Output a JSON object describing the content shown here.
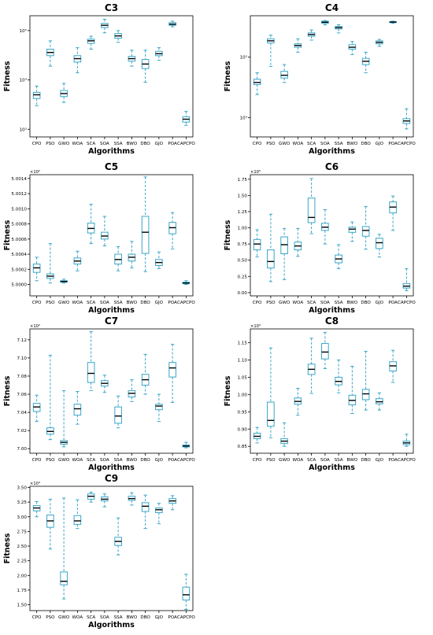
{
  "style": {
    "box_color": "#3aa6c8",
    "median_color": "#000000",
    "axis_color": "#000000"
  },
  "chart_data": [
    {
      "type": "box",
      "title": "C3",
      "xlabel": "Algorithms",
      "ylabel": "Fitness",
      "yscale": "log",
      "ylim": [
        700,
        200000
      ],
      "offset_label": "",
      "categories": [
        "CPO",
        "PSO",
        "GWO",
        "WOA",
        "SCA",
        "SOA",
        "SSA",
        "BWO",
        "DBO",
        "GJO",
        "POA",
        "CAPCPO"
      ],
      "yticks": [
        1000,
        10000,
        100000
      ],
      "yticklabels": [
        "10³",
        "10⁴",
        "10⁵"
      ],
      "boxes": [
        {
          "whislo": 3000,
          "q1": 4200,
          "med": 5000,
          "q3": 5600,
          "whishi": 7500
        },
        {
          "whislo": 19000,
          "q1": 31000,
          "med": 36000,
          "q3": 42000,
          "whishi": 62000
        },
        {
          "whislo": 3500,
          "q1": 4600,
          "med": 5300,
          "q3": 6100,
          "whishi": 8500
        },
        {
          "whislo": 14000,
          "q1": 23000,
          "med": 27000,
          "q3": 31000,
          "whishi": 45000
        },
        {
          "whislo": 42000,
          "q1": 55000,
          "med": 62000,
          "q3": 67000,
          "whishi": 77000
        },
        {
          "whislo": 90000,
          "q1": 115000,
          "med": 128000,
          "q3": 140000,
          "whishi": 170000
        },
        {
          "whislo": 58000,
          "q1": 70000,
          "med": 78000,
          "q3": 87000,
          "whishi": 100000
        },
        {
          "whislo": 19000,
          "q1": 24000,
          "med": 27000,
          "q3": 30000,
          "whishi": 40000
        },
        {
          "whislo": 9000,
          "q1": 17000,
          "med": 21000,
          "q3": 26000,
          "whishi": 40000
        },
        {
          "whislo": 25000,
          "q1": 31000,
          "med": 34000,
          "q3": 38000,
          "whishi": 45000
        },
        {
          "whislo": 120000,
          "q1": 128000,
          "med": 135000,
          "q3": 145000,
          "whishi": 155000
        },
        {
          "whislo": 1200,
          "q1": 1400,
          "med": 1600,
          "q3": 1800,
          "whishi": 2300
        }
      ]
    },
    {
      "type": "box",
      "title": "C4",
      "xlabel": "Algorithms",
      "ylabel": "Fitness",
      "yscale": "log",
      "ylim": [
        4800,
        480000
      ],
      "offset_label": "",
      "categories": [
        "CPO",
        "PSO",
        "GWO",
        "WOA",
        "SCA",
        "SOA",
        "SSA",
        "BWO",
        "DBO",
        "GJO",
        "POA",
        "CAPCPO"
      ],
      "yticks": [
        10000,
        100000
      ],
      "yticklabels": [
        "10⁴",
        "10⁵"
      ],
      "boxes": [
        {
          "whislo": 24000,
          "q1": 35000,
          "med": 38000,
          "q3": 43000,
          "whishi": 55000
        },
        {
          "whislo": 70000,
          "q1": 170000,
          "med": 185000,
          "q3": 200000,
          "whishi": 230000
        },
        {
          "whislo": 38000,
          "q1": 45000,
          "med": 50000,
          "q3": 58000,
          "whishi": 75000
        },
        {
          "whislo": 120000,
          "q1": 145000,
          "med": 155000,
          "q3": 165000,
          "whishi": 200000
        },
        {
          "whislo": 190000,
          "q1": 220000,
          "med": 235000,
          "q3": 250000,
          "whishi": 280000
        },
        {
          "whislo": 340000,
          "q1": 360000,
          "med": 375000,
          "q3": 390000,
          "whishi": 400000
        },
        {
          "whislo": 250000,
          "q1": 290000,
          "med": 305000,
          "q3": 320000,
          "whishi": 340000
        },
        {
          "whislo": 110000,
          "q1": 135000,
          "med": 145000,
          "q3": 160000,
          "whishi": 180000
        },
        {
          "whislo": 55000,
          "q1": 75000,
          "med": 85000,
          "q3": 95000,
          "whishi": 120000
        },
        {
          "whislo": 150000,
          "q1": 165000,
          "med": 175000,
          "q3": 185000,
          "whishi": 195000
        },
        {
          "whislo": 360000,
          "q1": 370000,
          "med": 378000,
          "q3": 383000,
          "whishi": 390000
        },
        {
          "whislo": 6500,
          "q1": 8000,
          "med": 8800,
          "q3": 9600,
          "whishi": 14000
        }
      ]
    },
    {
      "type": "box",
      "title": "C5",
      "xlabel": "Algorithms",
      "ylabel": "Fitness",
      "yscale": "linear",
      "ylim": [
        4.99985,
        5.00145
      ],
      "offset_label": "×10²",
      "categories": [
        "CPO",
        "PSO",
        "GWO",
        "WOA",
        "SCA",
        "SOA",
        "SSA",
        "BWO",
        "DBO",
        "GJO",
        "POA",
        "CAPCPO"
      ],
      "yticks": [
        5.0,
        5.0002,
        5.0004,
        5.0006,
        5.0008,
        5.001,
        5.0012,
        5.0014
      ],
      "yticklabels": [
        "5.0000",
        "5.0002",
        "5.0004",
        "5.0006",
        "5.0008",
        "5.0010",
        "5.0012",
        "5.0014"
      ],
      "boxes": [
        {
          "whislo": 5.00005,
          "q1": 5.00016,
          "med": 5.00022,
          "q3": 5.00027,
          "whishi": 5.00036
        },
        {
          "whislo": 5.00002,
          "q1": 5.00008,
          "med": 5.00011,
          "q3": 5.00014,
          "whishi": 5.00054
        },
        {
          "whislo": 5.00002,
          "q1": 5.00003,
          "med": 5.00004,
          "q3": 5.00005,
          "whishi": 5.00007
        },
        {
          "whislo": 5.00018,
          "q1": 5.00027,
          "med": 5.00031,
          "q3": 5.00035,
          "whishi": 5.00044
        },
        {
          "whislo": 5.00054,
          "q1": 5.00068,
          "med": 5.00074,
          "q3": 5.00081,
          "whishi": 5.00106
        },
        {
          "whislo": 5.00051,
          "q1": 5.0006,
          "med": 5.00064,
          "q3": 5.00069,
          "whishi": 5.0009
        },
        {
          "whislo": 5.00018,
          "q1": 5.00027,
          "med": 5.00033,
          "q3": 5.0004,
          "whishi": 5.0005
        },
        {
          "whislo": 5.00022,
          "q1": 5.00031,
          "med": 5.00036,
          "q3": 5.0004,
          "whishi": 5.00057
        },
        {
          "whislo": 5.00017,
          "q1": 5.00041,
          "med": 5.00069,
          "q3": 5.0009,
          "whishi": 5.00142
        },
        {
          "whislo": 5.00021,
          "q1": 5.00025,
          "med": 5.00029,
          "q3": 5.00033,
          "whishi": 5.00043
        },
        {
          "whislo": 5.00047,
          "q1": 5.00067,
          "med": 5.00075,
          "q3": 5.00082,
          "whishi": 5.00095
        },
        {
          "whislo": 5.0,
          "q1": 5.00001,
          "med": 5.00002,
          "q3": 5.00003,
          "whishi": 5.00005
        }
      ]
    },
    {
      "type": "box",
      "title": "C6",
      "xlabel": "Algorithms",
      "ylabel": "Fitness",
      "yscale": "linear",
      "ylim": [
        -0.05,
        1.82
      ],
      "offset_label": "×10⁵",
      "categories": [
        "CPO",
        "PSO",
        "GWO",
        "WOA",
        "SCA",
        "SOA",
        "SSA",
        "BWO",
        "DBO",
        "GJO",
        "POA",
        "CAPCPO"
      ],
      "yticks": [
        0.0,
        0.25,
        0.5,
        0.75,
        1.0,
        1.25,
        1.5,
        1.75
      ],
      "yticklabels": [
        "0.00",
        "0.25",
        "0.50",
        "0.75",
        "1.00",
        "1.25",
        "1.50",
        "1.75"
      ],
      "boxes": [
        {
          "whislo": 0.55,
          "q1": 0.66,
          "med": 0.75,
          "q3": 0.82,
          "whishi": 0.97
        },
        {
          "whislo": 0.17,
          "q1": 0.38,
          "med": 0.48,
          "q3": 0.66,
          "whishi": 1.21
        },
        {
          "whislo": 0.2,
          "q1": 0.6,
          "med": 0.74,
          "q3": 0.86,
          "whishi": 0.99
        },
        {
          "whislo": 0.56,
          "q1": 0.66,
          "med": 0.72,
          "q3": 0.78,
          "whishi": 0.99
        },
        {
          "whislo": 0.91,
          "q1": 1.08,
          "med": 1.16,
          "q3": 1.46,
          "whishi": 1.76
        },
        {
          "whislo": 0.75,
          "q1": 0.96,
          "med": 1.01,
          "q3": 1.07,
          "whishi": 1.28
        },
        {
          "whislo": 0.37,
          "q1": 0.46,
          "med": 0.52,
          "q3": 0.58,
          "whishi": 0.74
        },
        {
          "whislo": 0.79,
          "q1": 0.93,
          "med": 0.98,
          "q3": 1.01,
          "whishi": 1.09
        },
        {
          "whislo": 0.67,
          "q1": 0.87,
          "med": 0.96,
          "q3": 1.02,
          "whishi": 1.33
        },
        {
          "whislo": 0.55,
          "q1": 0.68,
          "med": 0.77,
          "q3": 0.84,
          "whishi": 0.9
        },
        {
          "whislo": 0.96,
          "q1": 1.23,
          "med": 1.32,
          "q3": 1.4,
          "whishi": 1.49
        },
        {
          "whislo": 0.03,
          "q1": 0.07,
          "med": 0.1,
          "q3": 0.14,
          "whishi": 0.37
        }
      ]
    },
    {
      "type": "box",
      "title": "C7",
      "xlabel": "Algorithms",
      "ylabel": "Fitness",
      "yscale": "linear",
      "ylim": [
        6.995,
        7.132
      ],
      "offset_label": "×10²",
      "categories": [
        "CPO",
        "PSO",
        "GWO",
        "WOA",
        "SCA",
        "SOA",
        "SSA",
        "BWO",
        "DBO",
        "GJO",
        "POA",
        "CAPCPO"
      ],
      "yticks": [
        7.0,
        7.02,
        7.04,
        7.06,
        7.08,
        7.1,
        7.12
      ],
      "yticklabels": [
        "7.00",
        "7.02",
        "7.04",
        "7.06",
        "7.08",
        "7.10",
        "7.12"
      ],
      "boxes": [
        {
          "whislo": 7.03,
          "q1": 7.041,
          "med": 7.046,
          "q3": 7.05,
          "whishi": 7.059
        },
        {
          "whislo": 7.01,
          "q1": 7.016,
          "med": 7.019,
          "q3": 7.023,
          "whishi": 7.103
        },
        {
          "whislo": 7.002,
          "q1": 7.005,
          "med": 7.007,
          "q3": 7.009,
          "whishi": 7.064
        },
        {
          "whislo": 7.027,
          "q1": 7.037,
          "med": 7.044,
          "q3": 7.049,
          "whishi": 7.063
        },
        {
          "whislo": 7.064,
          "q1": 7.073,
          "med": 7.083,
          "q3": 7.095,
          "whishi": 7.129
        },
        {
          "whislo": 7.062,
          "q1": 7.069,
          "med": 7.072,
          "q3": 7.075,
          "whishi": 7.081
        },
        {
          "whislo": 7.023,
          "q1": 7.028,
          "med": 7.036,
          "q3": 7.046,
          "whishi": 7.058
        },
        {
          "whislo": 7.052,
          "q1": 7.057,
          "med": 7.061,
          "q3": 7.064,
          "whishi": 7.076
        },
        {
          "whislo": 7.06,
          "q1": 7.07,
          "med": 7.076,
          "q3": 7.082,
          "whishi": 7.104
        },
        {
          "whislo": 7.03,
          "q1": 7.043,
          "med": 7.047,
          "q3": 7.049,
          "whishi": 7.06
        },
        {
          "whislo": 7.051,
          "q1": 7.079,
          "med": 7.089,
          "q3": 7.095,
          "whishi": 7.115
        },
        {
          "whislo": 7.001,
          "q1": 7.002,
          "med": 7.003,
          "q3": 7.004,
          "whishi": 7.007
        }
      ]
    },
    {
      "type": "box",
      "title": "C8",
      "xlabel": "Algorithms",
      "ylabel": "Fitness",
      "yscale": "linear",
      "ylim": [
        0.83,
        1.19
      ],
      "offset_label": "×10³",
      "categories": [
        "CPO",
        "PSO",
        "GWO",
        "WOA",
        "SCA",
        "SOA",
        "SSA",
        "BWO",
        "DBO",
        "GJO",
        "POA",
        "CAPCPO"
      ],
      "yticks": [
        0.85,
        0.9,
        0.95,
        1.0,
        1.05,
        1.1,
        1.15
      ],
      "yticklabels": [
        "0.85",
        "0.90",
        "0.95",
        "1.00",
        "1.05",
        "1.10",
        "1.15"
      ],
      "boxes": [
        {
          "whislo": 0.86,
          "q1": 0.872,
          "med": 0.879,
          "q3": 0.888,
          "whishi": 0.905
        },
        {
          "whislo": 0.875,
          "q1": 0.908,
          "med": 0.925,
          "q3": 0.978,
          "whishi": 1.135
        },
        {
          "whislo": 0.85,
          "q1": 0.858,
          "med": 0.865,
          "q3": 0.872,
          "whishi": 0.918
        },
        {
          "whislo": 0.94,
          "q1": 0.972,
          "med": 0.98,
          "q3": 0.99,
          "whishi": 1.018
        },
        {
          "whislo": 1.003,
          "q1": 1.058,
          "med": 1.073,
          "q3": 1.088,
          "whishi": 1.163
        },
        {
          "whislo": 1.075,
          "q1": 1.103,
          "med": 1.123,
          "q3": 1.148,
          "whishi": 1.18
        },
        {
          "whislo": 1.005,
          "q1": 1.028,
          "med": 1.038,
          "q3": 1.05,
          "whishi": 1.1
        },
        {
          "whislo": 0.945,
          "q1": 0.97,
          "med": 0.983,
          "q3": 0.998,
          "whishi": 1.082
        },
        {
          "whislo": 0.955,
          "q1": 0.985,
          "med": 1.002,
          "q3": 1.015,
          "whishi": 1.125
        },
        {
          "whislo": 0.955,
          "q1": 0.973,
          "med": 0.979,
          "q3": 0.988,
          "whishi": 1.005
        },
        {
          "whislo": 1.035,
          "q1": 1.068,
          "med": 1.083,
          "q3": 1.095,
          "whishi": 1.128
        },
        {
          "whislo": 0.85,
          "q1": 0.855,
          "med": 0.86,
          "q3": 0.865,
          "whishi": 0.885
        }
      ]
    },
    {
      "type": "box",
      "title": "C9",
      "xlabel": "Algorithms",
      "ylabel": "Fitness",
      "yscale": "linear",
      "ylim": [
        1.4,
        3.52
      ],
      "offset_label": "×10⁴",
      "categories": [
        "CPO",
        "PSO",
        "GWO",
        "WOA",
        "SCA",
        "SOA",
        "SSA",
        "BWO",
        "DBO",
        "GJO",
        "POA",
        "CAPCPO"
      ],
      "yticks": [
        1.5,
        1.75,
        2.0,
        2.25,
        2.5,
        2.75,
        3.0,
        3.25,
        3.5
      ],
      "yticklabels": [
        "1.50",
        "1.75",
        "2.00",
        "2.25",
        "2.50",
        "2.75",
        "3.00",
        "3.25",
        "3.50"
      ],
      "boxes": [
        {
          "whislo": 3.0,
          "q1": 3.1,
          "med": 3.15,
          "q3": 3.19,
          "whishi": 3.26
        },
        {
          "whislo": 2.45,
          "q1": 2.82,
          "med": 2.93,
          "q3": 3.03,
          "whishi": 3.3
        },
        {
          "whislo": 1.6,
          "q1": 1.84,
          "med": 1.9,
          "q3": 2.06,
          "whishi": 3.32
        },
        {
          "whislo": 2.8,
          "q1": 2.87,
          "med": 2.93,
          "q3": 3.02,
          "whishi": 3.29
        },
        {
          "whislo": 3.25,
          "q1": 3.3,
          "med": 3.35,
          "q3": 3.39,
          "whishi": 3.42
        },
        {
          "whislo": 3.17,
          "q1": 3.27,
          "med": 3.3,
          "q3": 3.34,
          "whishi": 3.39
        },
        {
          "whislo": 2.35,
          "q1": 2.51,
          "med": 2.58,
          "q3": 2.65,
          "whishi": 2.98
        },
        {
          "whislo": 3.2,
          "q1": 3.28,
          "med": 3.31,
          "q3": 3.35,
          "whishi": 3.41
        },
        {
          "whislo": 2.8,
          "q1": 3.09,
          "med": 3.18,
          "q3": 3.24,
          "whishi": 3.37
        },
        {
          "whislo": 2.88,
          "q1": 3.07,
          "med": 3.12,
          "q3": 3.15,
          "whishi": 3.23
        },
        {
          "whislo": 3.12,
          "q1": 3.23,
          "med": 3.27,
          "q3": 3.31,
          "whishi": 3.36
        },
        {
          "whislo": 1.42,
          "q1": 1.58,
          "med": 1.67,
          "q3": 1.8,
          "whishi": 2.02
        }
      ]
    }
  ]
}
